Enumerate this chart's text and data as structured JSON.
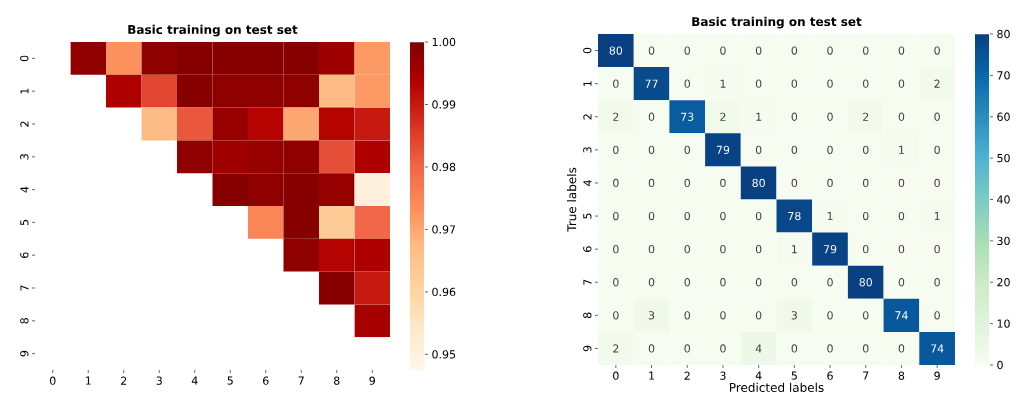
{
  "chart_data": [
    {
      "type": "heatmap",
      "title": "Basic training on test set",
      "categories": [
        "0",
        "1",
        "2",
        "3",
        "4",
        "5",
        "6",
        "7",
        "8",
        "9"
      ],
      "y_categories": [
        "0",
        "1",
        "2",
        "3",
        "4",
        "5",
        "6",
        "7",
        "8",
        "9"
      ],
      "cells": [
        [
          null,
          0.998,
          0.973,
          0.998,
          0.999,
          0.999,
          0.999,
          0.999,
          0.996,
          0.972
        ],
        [
          null,
          null,
          0.994,
          0.984,
          0.999,
          0.998,
          0.998,
          0.998,
          0.967,
          0.972
        ],
        [
          null,
          null,
          null,
          0.967,
          0.982,
          0.997,
          0.993,
          0.97,
          0.993,
          0.99
        ],
        [
          null,
          null,
          null,
          null,
          0.998,
          0.996,
          0.997,
          0.998,
          0.983,
          0.994
        ],
        [
          null,
          null,
          null,
          null,
          null,
          0.999,
          0.998,
          0.999,
          0.997,
          0.95
        ],
        [
          null,
          null,
          null,
          null,
          null,
          null,
          0.975,
          0.999,
          0.963,
          0.98
        ],
        [
          null,
          null,
          null,
          null,
          null,
          null,
          null,
          0.998,
          0.993,
          0.994
        ],
        [
          null,
          null,
          null,
          null,
          null,
          null,
          null,
          null,
          0.999,
          0.99
        ],
        [
          null,
          null,
          null,
          null,
          null,
          null,
          null,
          null,
          null,
          0.995
        ],
        [
          null,
          null,
          null,
          null,
          null,
          null,
          null,
          null,
          null,
          null
        ]
      ],
      "clim": [
        0.9475,
        1.0
      ],
      "cticks": [
        0.95,
        0.96,
        0.97,
        0.98,
        0.99,
        {
          "value": 1.0,
          "label": "1.00"
        }
      ],
      "colors": [
        "#fff7ec",
        "#fee8c8",
        "#fdd49e",
        "#fdbb84",
        "#fc8d59",
        "#ef6548",
        "#d7301f",
        "#b30000",
        "#7f0000"
      ]
    },
    {
      "type": "heatmap",
      "title": "Basic training on test set",
      "xlabel": "Predicted labels",
      "ylabel": "True labels",
      "categories": [
        "0",
        "1",
        "2",
        "3",
        "4",
        "5",
        "6",
        "7",
        "8",
        "9"
      ],
      "y_categories": [
        "0",
        "1",
        "2",
        "3",
        "4",
        "5",
        "6",
        "7",
        "8",
        "9"
      ],
      "cells": [
        [
          80,
          0,
          0,
          0,
          0,
          0,
          0,
          0,
          0,
          0
        ],
        [
          0,
          77,
          0,
          1,
          0,
          0,
          0,
          0,
          0,
          2
        ],
        [
          2,
          0,
          73,
          2,
          1,
          0,
          0,
          2,
          0,
          0
        ],
        [
          0,
          0,
          0,
          79,
          0,
          0,
          0,
          0,
          1,
          0
        ],
        [
          0,
          0,
          0,
          0,
          80,
          0,
          0,
          0,
          0,
          0
        ],
        [
          0,
          0,
          0,
          0,
          0,
          78,
          1,
          0,
          0,
          1
        ],
        [
          0,
          0,
          0,
          0,
          0,
          1,
          79,
          0,
          0,
          0
        ],
        [
          0,
          0,
          0,
          0,
          0,
          0,
          0,
          80,
          0,
          0
        ],
        [
          0,
          3,
          0,
          0,
          0,
          3,
          0,
          0,
          74,
          0
        ],
        [
          2,
          0,
          0,
          0,
          4,
          0,
          0,
          0,
          0,
          74
        ]
      ],
      "data_labels": true,
      "clim": [
        0,
        80
      ],
      "cticks": [
        0,
        10,
        20,
        30,
        40,
        50,
        60,
        70,
        80
      ],
      "colors": [
        "#f7fcf0",
        "#e0f3db",
        "#ccebc5",
        "#a8ddb5",
        "#7bccc4",
        "#4eb3d3",
        "#2b8cbe",
        "#0868ac",
        "#084081"
      ]
    }
  ]
}
